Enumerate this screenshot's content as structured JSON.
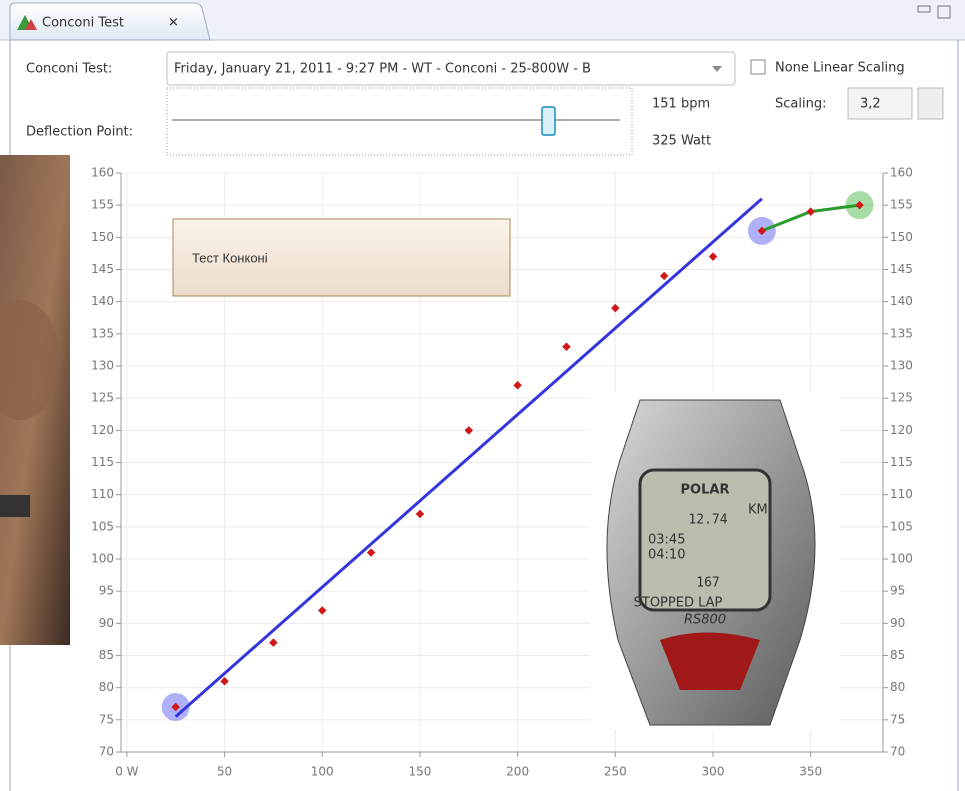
{
  "tab": {
    "title": "Conconi Test"
  },
  "form": {
    "test_label": "Conconi Test:",
    "test_value": "Friday, January 21, 2011 - 9:27 PM - WT - Conconi - 25-800W - B",
    "deflection_label": "Deflection Point:",
    "bpm": "151 bpm",
    "watt": "325 Watt",
    "checkbox_label": "None Linear Scaling",
    "scaling_label": "Scaling:",
    "scaling_value": "3,2"
  },
  "overlay": {
    "title": "Тест Конконі"
  },
  "watch": {
    "brand": "POLAR",
    "distance": "12.74",
    "unit": "KM",
    "time1": "03:45",
    "time2": "04:10",
    "heart_rate": "167",
    "status": "STOPPED LAP",
    "model": "RS800"
  },
  "chart_data": {
    "type": "scatter",
    "x": [
      25,
      50,
      75,
      100,
      125,
      150,
      175,
      200,
      225,
      250,
      275,
      300,
      325,
      350,
      375
    ],
    "values": [
      77,
      81,
      87,
      92,
      101,
      107,
      120,
      127,
      133,
      139,
      144,
      147,
      151,
      154,
      155
    ],
    "color": "#d01818",
    "trend": {
      "x": [
        25,
        325
      ],
      "values": [
        75.5,
        156
      ],
      "color": "#3535e0"
    },
    "deflection": {
      "x": [
        325,
        350,
        375
      ],
      "values": [
        151,
        154,
        155
      ],
      "color": "#2a9a2a"
    },
    "highlights": [
      {
        "x": 25,
        "y": 77,
        "color": "#6f6ff0"
      },
      {
        "x": 325,
        "y": 151,
        "color": "#6f6ff0"
      },
      {
        "x": 375,
        "y": 155,
        "color": "#5cc05c"
      }
    ],
    "xlim": [
      -3,
      387
    ],
    "xticks": [
      {
        "value": 0,
        "label": "0 W"
      },
      50,
      100,
      150,
      200,
      250,
      300,
      350
    ],
    "ylim": [
      70,
      160
    ],
    "yticks": [
      70,
      75,
      80,
      85,
      90,
      95,
      100,
      105,
      110,
      115,
      120,
      125,
      130,
      135,
      140,
      145,
      150,
      155,
      160
    ],
    "grid": true
  }
}
